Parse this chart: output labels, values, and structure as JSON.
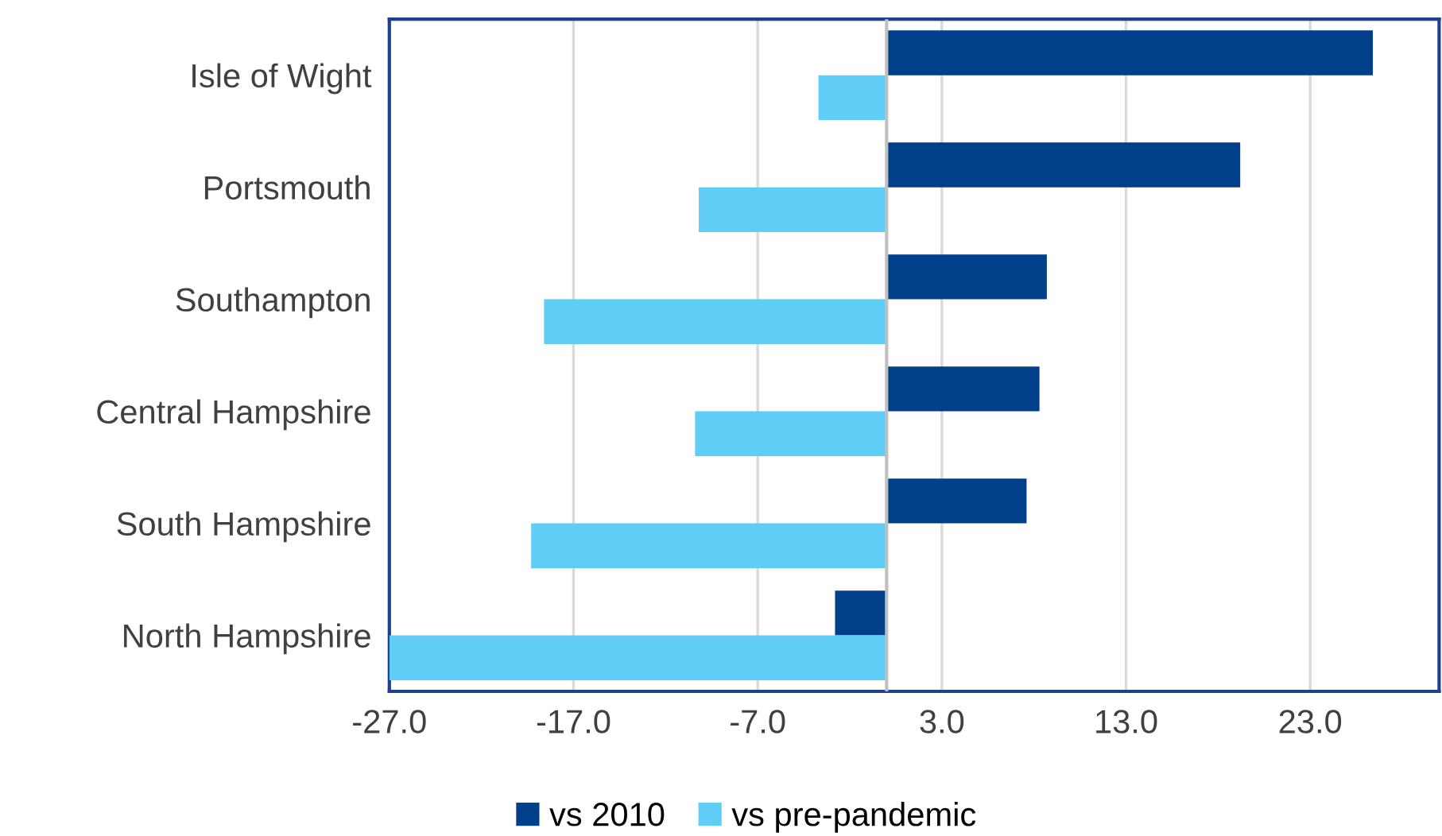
{
  "chart_data": {
    "type": "bar",
    "orientation": "horizontal",
    "categories": [
      "Isle of Wight",
      "Portsmouth",
      "Southampton",
      "Central Hampshire",
      "South Hampshire",
      "North Hampshire"
    ],
    "series": [
      {
        "name": "vs 2010",
        "color": "#003f8a",
        "values": [
          26.4,
          19.2,
          8.7,
          8.3,
          7.6,
          -2.8
        ]
      },
      {
        "name": "vs pre-pandemic",
        "color": "#5fcdf5",
        "values": [
          -3.7,
          -10.2,
          -18.6,
          -10.4,
          -19.3,
          -27.0
        ]
      }
    ],
    "xlim": [
      -27,
      30
    ],
    "xticks": [
      {
        "value": -27,
        "label": "-27.0"
      },
      {
        "value": -17,
        "label": "-17.0"
      },
      {
        "value": -7,
        "label": "-7.0"
      },
      {
        "value": 3,
        "label": "3.0"
      },
      {
        "value": 13,
        "label": "13.0"
      },
      {
        "value": 23,
        "label": "23.0"
      }
    ],
    "grid": "x",
    "legend": "bottom"
  }
}
